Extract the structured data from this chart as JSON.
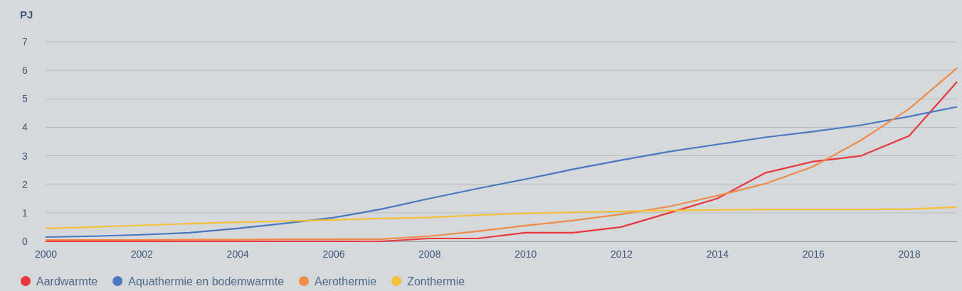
{
  "chart_data": {
    "type": "line",
    "ylabel": "PJ",
    "x": [
      2000,
      2001,
      2002,
      2003,
      2004,
      2005,
      2006,
      2007,
      2008,
      2009,
      2010,
      2011,
      2012,
      2013,
      2014,
      2015,
      2016,
      2017,
      2018,
      2019
    ],
    "xlim": [
      2000,
      2019
    ],
    "xticks": [
      2000,
      2002,
      2004,
      2006,
      2008,
      2010,
      2012,
      2014,
      2016,
      2018
    ],
    "ylim": [
      0,
      7
    ],
    "yticks": [
      0,
      1,
      2,
      3,
      4,
      5,
      6,
      7
    ],
    "grid": "y",
    "legend": "bottom",
    "line_style": "solid",
    "marker": "none",
    "series": [
      {
        "name": "Aardwarmte",
        "color": "#e8383d",
        "values": [
          0,
          0,
          0,
          0,
          0,
          0,
          0,
          0,
          0.1,
          0.1,
          0.3,
          0.3,
          0.5,
          1.0,
          1.5,
          2.4,
          2.8,
          3.0,
          3.7,
          5.6
        ]
      },
      {
        "name": "Aquathermie en bodemwarmte",
        "color": "#4a78bf",
        "values": [
          0.15,
          0.18,
          0.23,
          0.3,
          0.45,
          0.63,
          0.83,
          1.13,
          1.5,
          1.85,
          2.18,
          2.53,
          2.85,
          3.15,
          3.4,
          3.65,
          3.85,
          4.08,
          4.38,
          4.72
        ]
      },
      {
        "name": "Aerothermie",
        "color": "#ef8c4a",
        "values": [
          0.05,
          0.05,
          0.05,
          0.06,
          0.06,
          0.07,
          0.07,
          0.08,
          0.18,
          0.35,
          0.55,
          0.73,
          0.95,
          1.22,
          1.6,
          2.02,
          2.62,
          3.55,
          4.65,
          6.08
        ]
      },
      {
        "name": "Zonthermie",
        "color": "#f5c13a",
        "values": [
          0.45,
          0.5,
          0.56,
          0.62,
          0.67,
          0.71,
          0.75,
          0.8,
          0.84,
          0.92,
          0.98,
          1.02,
          1.05,
          1.08,
          1.1,
          1.12,
          1.12,
          1.12,
          1.13,
          1.2
        ]
      }
    ]
  }
}
